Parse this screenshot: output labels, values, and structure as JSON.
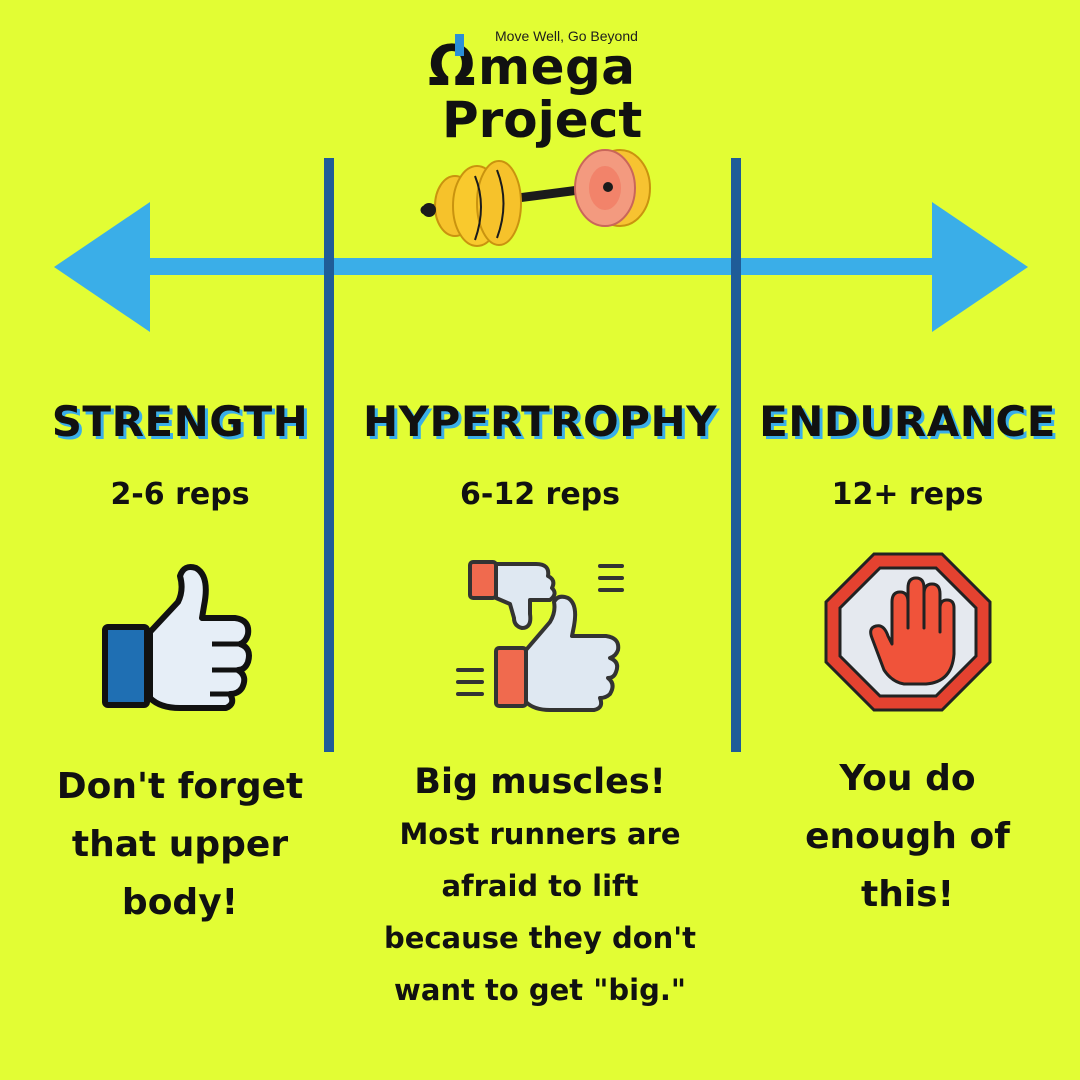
{
  "logo": {
    "tagline": "Move Well, Go Beyond",
    "omega": "Ω",
    "word": "mega",
    "project": "Project"
  },
  "columns": [
    {
      "title": "STRENGTH",
      "reps": "2-6 reps",
      "icon": "thumbs-up-icon",
      "description": [
        "Don't forget",
        "that upper",
        "body!"
      ]
    },
    {
      "title": "HYPERTROPHY",
      "reps": "6-12 reps",
      "icon": "thumbs-up-down-icon",
      "headline": "Big muscles!",
      "description": [
        "Most runners are",
        "afraid to lift",
        "because they don't",
        "want to get \"big.\""
      ]
    },
    {
      "title": "ENDURANCE",
      "reps": "12+ reps",
      "icon": "stop-hand-icon",
      "description": [
        "You do",
        "enough of",
        "this!"
      ]
    }
  ],
  "colors": {
    "background": "#e2fd34",
    "arrow": "#3aaee8",
    "divider": "#1f5c98",
    "heading_shadow": "#3aaee8"
  }
}
